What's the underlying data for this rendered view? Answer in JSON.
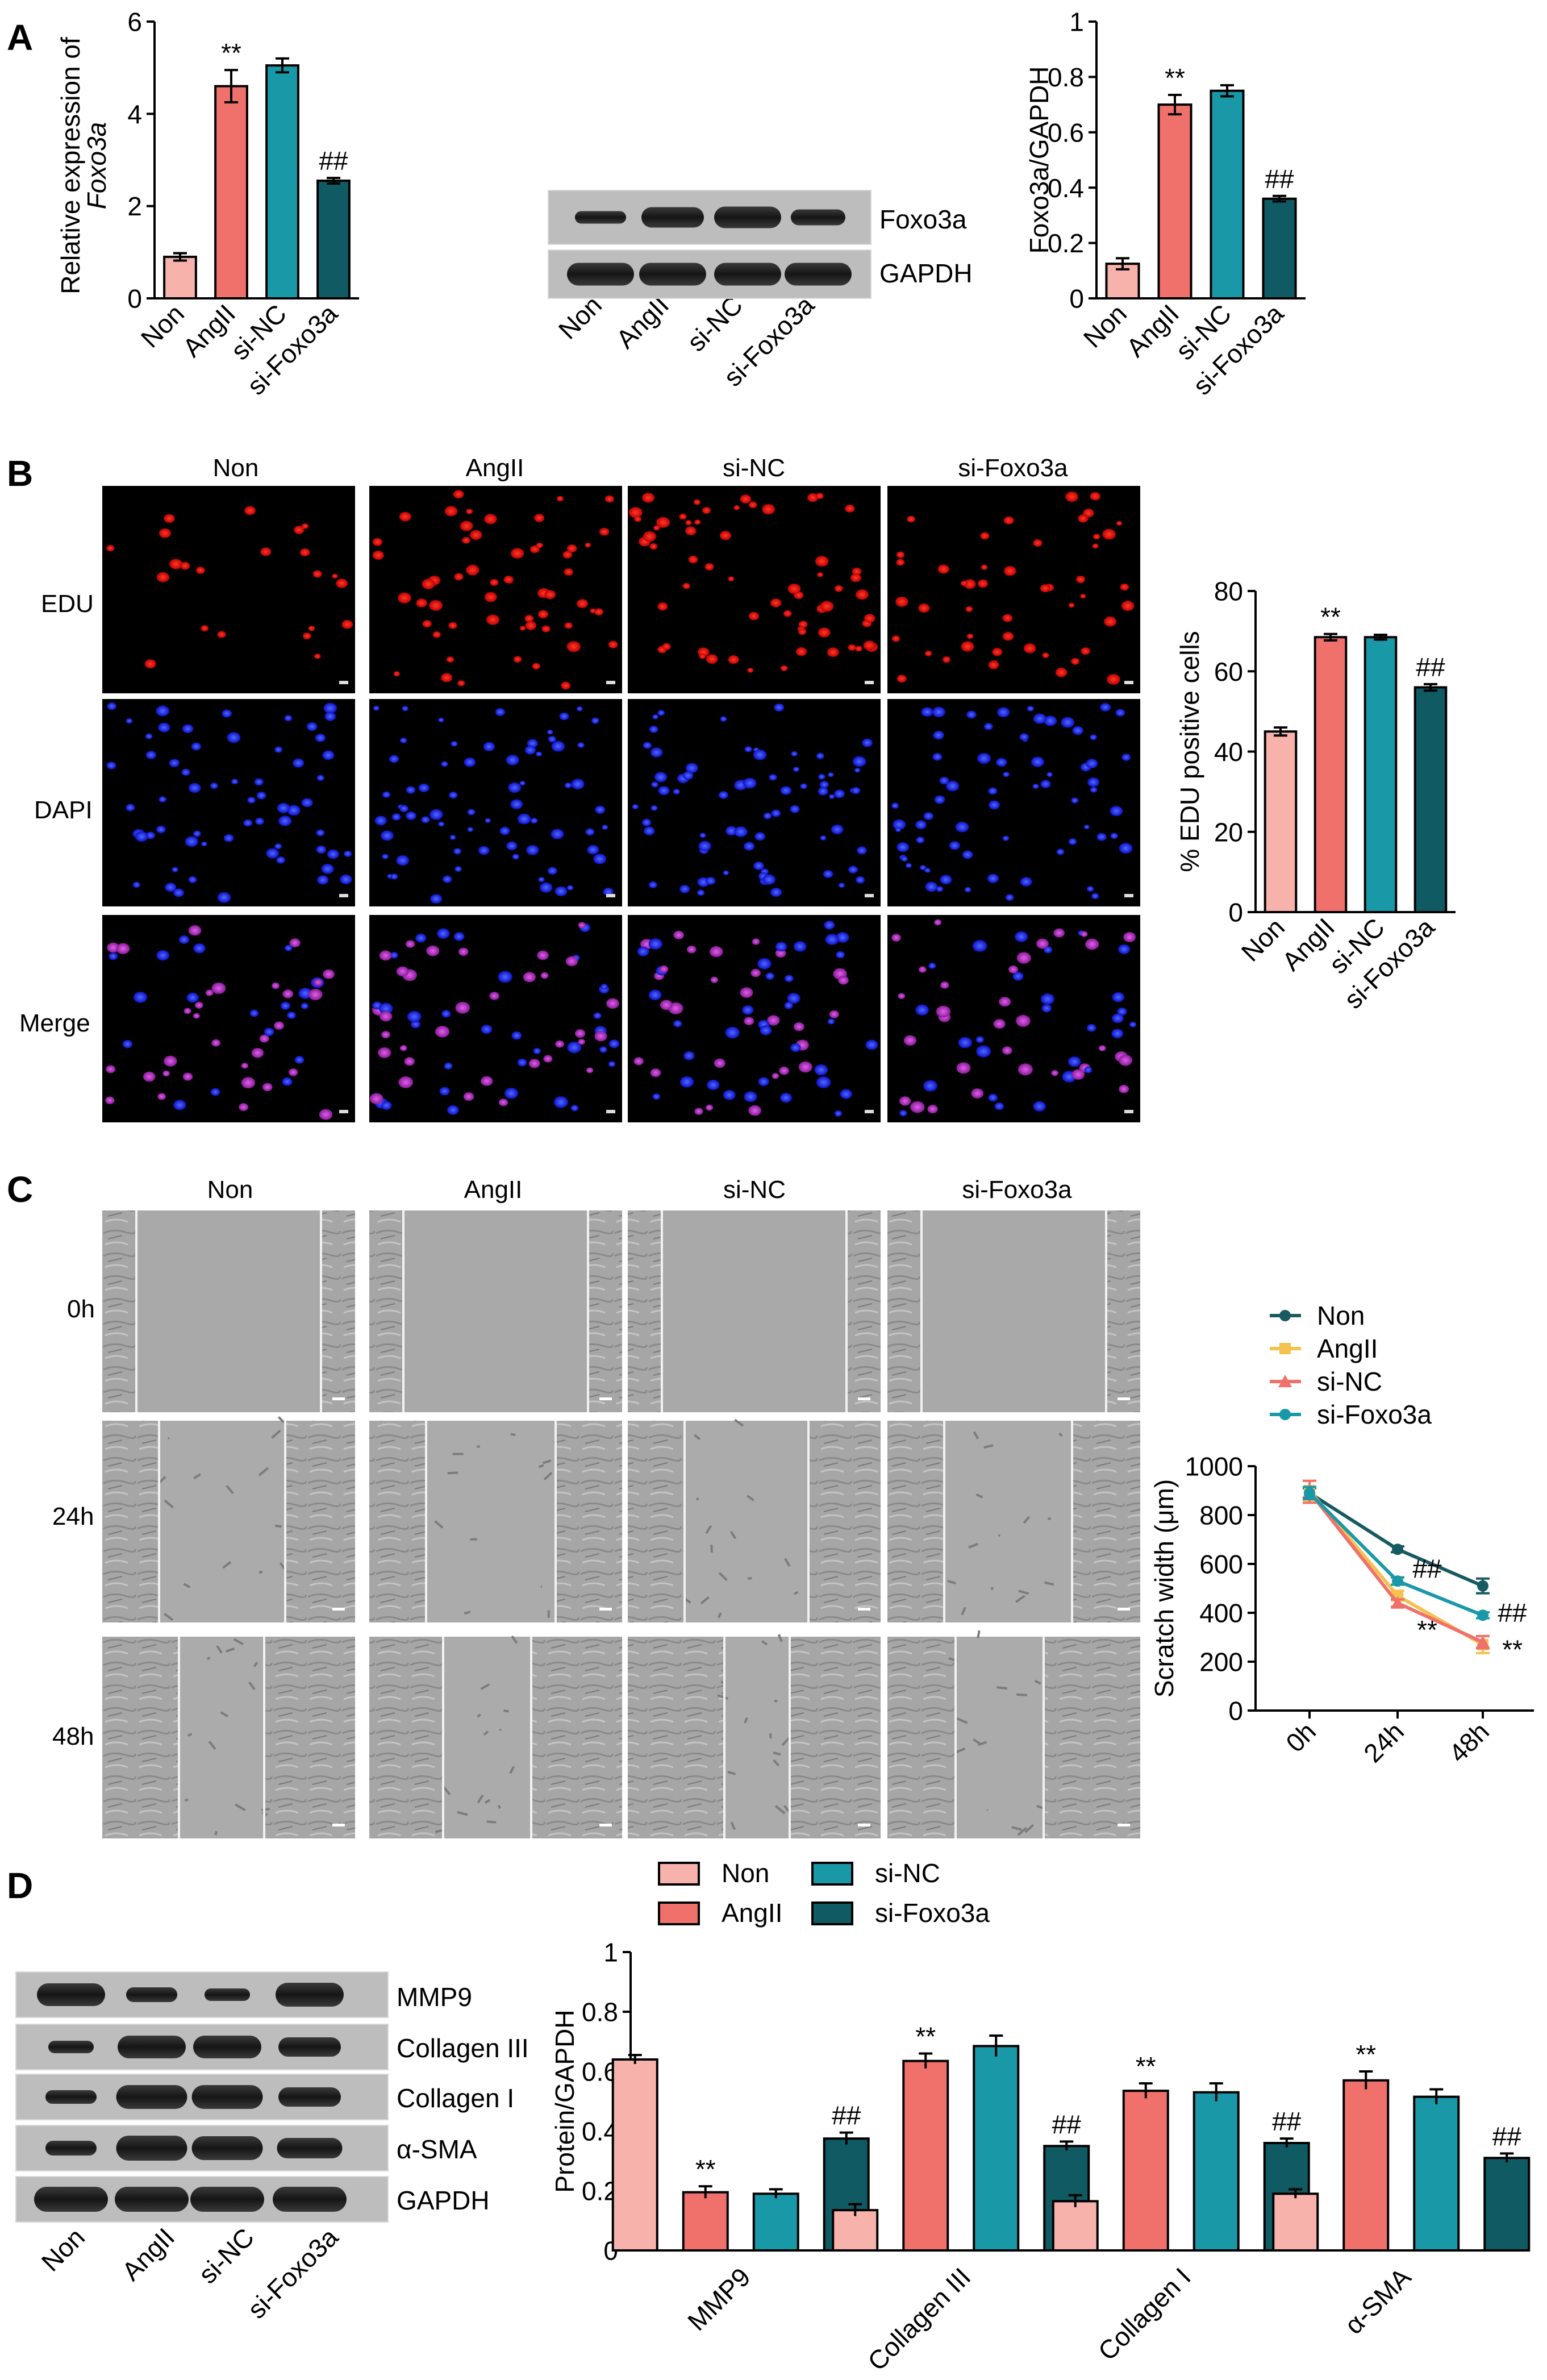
{
  "panel_labels": [
    "A",
    "B",
    "C",
    "D"
  ],
  "groups": [
    "Non",
    "AngII",
    "si-NC",
    "si-Foxo3a"
  ],
  "colors": {
    "Non": "#f7b2ac",
    "AngII": "#f0716b",
    "si-NC": "#1999a7",
    "si-Foxo3a": "#0f5a63"
  },
  "line_colors": {
    "Non": "#185a62",
    "AngII": "#f5c14f",
    "si-NC": "#f0716b",
    "si-Foxo3a": "#1999a7"
  },
  "blot_a": {
    "labels": [
      "Foxo3a",
      "GAPDH"
    ],
    "lane_labels": [
      "Non",
      "AngII",
      "si-NC",
      "si-Foxo3a"
    ]
  },
  "blot_d": {
    "labels": [
      "MMP9",
      "Collagen III",
      "Collagen I",
      "α-SMA",
      "GAPDH"
    ],
    "lane_labels": [
      "Non",
      "AngII",
      "si-NC",
      "si-Foxo3a"
    ]
  },
  "micro_b": {
    "col_labels": [
      "Non",
      "AngII",
      "si-NC",
      "si-Foxo3a"
    ],
    "row_labels": [
      "EDU",
      "DAPI",
      "Merge"
    ]
  },
  "micro_c": {
    "col_labels": [
      "Non",
      "AngII",
      "si-NC",
      "si-Foxo3a"
    ],
    "row_labels": [
      "0h",
      "24h",
      "48h"
    ]
  },
  "chart_data": [
    {
      "id": "A1",
      "type": "bar",
      "ylabel_line1": "Relative expression of",
      "ylabel_line2": "Foxo3a",
      "categories": [
        "Non",
        "AngII",
        "si-NC",
        "si-Foxo3a"
      ],
      "values": [
        0.9,
        4.6,
        5.05,
        2.55
      ],
      "errors": [
        0.08,
        0.35,
        0.15,
        0.06
      ],
      "annotations": [
        "",
        "**",
        "",
        "##"
      ],
      "ylim": [
        0,
        6
      ],
      "yticks": [
        0,
        2,
        4,
        6
      ]
    },
    {
      "id": "A2",
      "type": "bar",
      "ylabel": "Foxo3a/GAPDH",
      "categories": [
        "Non",
        "AngII",
        "si-NC",
        "si-Foxo3a"
      ],
      "values": [
        0.125,
        0.7,
        0.75,
        0.36
      ],
      "errors": [
        0.02,
        0.035,
        0.02,
        0.01
      ],
      "annotations": [
        "",
        "**",
        "",
        "##"
      ],
      "ylim": [
        0,
        1.0
      ],
      "yticks": [
        0.0,
        0.2,
        0.4,
        0.6,
        0.8,
        1.0
      ]
    },
    {
      "id": "B",
      "type": "bar",
      "ylabel": "% EDU positive cells",
      "categories": [
        "Non",
        "AngII",
        "si-NC",
        "si-Foxo3a"
      ],
      "values": [
        45,
        68.5,
        68.5,
        56
      ],
      "errors": [
        1.0,
        0.8,
        0.6,
        0.8
      ],
      "annotations": [
        "",
        "**",
        "",
        "##"
      ],
      "ylim": [
        0,
        80
      ],
      "yticks": [
        0,
        20,
        40,
        60,
        80
      ]
    },
    {
      "id": "C",
      "type": "line",
      "ylabel": "Scratch width (μm)",
      "x": [
        "0h",
        "24h",
        "48h"
      ],
      "series": [
        {
          "name": "Non",
          "values": [
            890,
            660,
            510
          ],
          "errors": [
            20,
            12,
            30
          ]
        },
        {
          "name": "AngII",
          "values": [
            900,
            470,
            270
          ],
          "errors": [
            40,
            20,
            35
          ]
        },
        {
          "name": "si-NC",
          "values": [
            895,
            440,
            280
          ],
          "errors": [
            45,
            15,
            25
          ]
        },
        {
          "name": "si-Foxo3a",
          "values": [
            890,
            530,
            390
          ],
          "errors": [
            25,
            15,
            12
          ]
        }
      ],
      "annotations": [
        {
          "text": "##",
          "x": "24h",
          "y": 580
        },
        {
          "text": "**",
          "x": "24h",
          "y": 330
        },
        {
          "text": "##",
          "x": "48h",
          "y": 400
        },
        {
          "text": "**",
          "x": "48h",
          "y": 250
        }
      ],
      "ylim": [
        0,
        1000
      ],
      "yticks": [
        0,
        200,
        400,
        600,
        800,
        1000
      ],
      "legend": "top"
    },
    {
      "id": "D",
      "type": "bar",
      "ylabel": "Protein/GAPDH",
      "categories": [
        "MMP9",
        "Collagen III",
        "Collagen I",
        "α-SMA"
      ],
      "series": [
        {
          "name": "Non",
          "values": [
            0.64,
            0.135,
            0.165,
            0.19
          ],
          "errors": [
            0.015,
            0.02,
            0.02,
            0.015
          ]
        },
        {
          "name": "AngII",
          "values": [
            0.195,
            0.635,
            0.535,
            0.57
          ],
          "errors": [
            0.02,
            0.025,
            0.025,
            0.03
          ]
        },
        {
          "name": "si-NC",
          "values": [
            0.19,
            0.685,
            0.53,
            0.515
          ],
          "errors": [
            0.015,
            0.035,
            0.03,
            0.025
          ]
        },
        {
          "name": "si-Foxo3a",
          "values": [
            0.375,
            0.35,
            0.36,
            0.31
          ],
          "errors": [
            0.02,
            0.015,
            0.015,
            0.015
          ]
        }
      ],
      "annotations": [
        {
          "text": "**",
          "category": "MMP9",
          "series": "AngII"
        },
        {
          "text": "##",
          "category": "MMP9",
          "series": "si-Foxo3a"
        },
        {
          "text": "**",
          "category": "Collagen III",
          "series": "AngII"
        },
        {
          "text": "##",
          "category": "Collagen III",
          "series": "si-Foxo3a"
        },
        {
          "text": "**",
          "category": "Collagen I",
          "series": "AngII"
        },
        {
          "text": "##",
          "category": "Collagen I",
          "series": "si-Foxo3a"
        },
        {
          "text": "**",
          "category": "α-SMA",
          "series": "AngII"
        },
        {
          "text": "##",
          "category": "α-SMA",
          "series": "si-Foxo3a"
        }
      ],
      "ylim": [
        0,
        1.0
      ],
      "yticks": [
        0.0,
        0.2,
        0.4,
        0.6,
        0.8,
        1.0
      ],
      "legend": "top"
    }
  ]
}
